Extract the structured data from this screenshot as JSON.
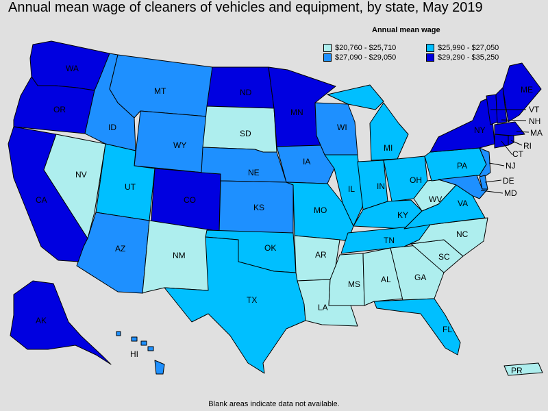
{
  "title": "Annual mean wage of cleaners of vehicles and equipment, by state, May 2019",
  "legend": {
    "title": "Annual mean wage",
    "items": [
      {
        "key": "c1",
        "label": "$20,760 - $25,710",
        "color": "#aeeeee"
      },
      {
        "key": "c2",
        "label": "$25,990 - $27,050",
        "color": "#00bfff"
      },
      {
        "key": "c3",
        "label": "$27,090 - $29,050",
        "color": "#1e90ff"
      },
      {
        "key": "c4",
        "label": "$29,290 - $35,250",
        "color": "#0000e0"
      }
    ]
  },
  "note": "Blank areas indicate data not available.",
  "states": {
    "WA": "c4",
    "OR": "c4",
    "CA": "c4",
    "NV": "c1",
    "ID": "c3",
    "MT": "c3",
    "WY": "c3",
    "UT": "c2",
    "AZ": "c3",
    "CO": "c4",
    "NM": "c1",
    "ND": "c4",
    "SD": "c1",
    "NE": "c3",
    "KS": "c3",
    "OK": "c2",
    "TX": "c2",
    "MN": "c4",
    "IA": "c3",
    "MO": "c2",
    "AR": "c1",
    "LA": "c1",
    "WI": "c3",
    "IL": "c2",
    "MI": "c2",
    "IN": "c2",
    "OH": "c2",
    "KY": "c2",
    "TN": "c2",
    "MS": "c1",
    "AL": "c1",
    "GA": "c1",
    "FL": "c2",
    "SC": "c1",
    "NC": "c1",
    "VA": "c2",
    "WV": "c1",
    "PA": "c2",
    "NY": "c4",
    "VT": "c4",
    "NH": "c4",
    "ME": "c4",
    "MA": "c4",
    "RI": "c4",
    "CT": "c4",
    "NJ": "c3",
    "DE": "c3",
    "MD": "c3",
    "AK": "c4",
    "HI": "c3",
    "PR": "c1"
  }
}
